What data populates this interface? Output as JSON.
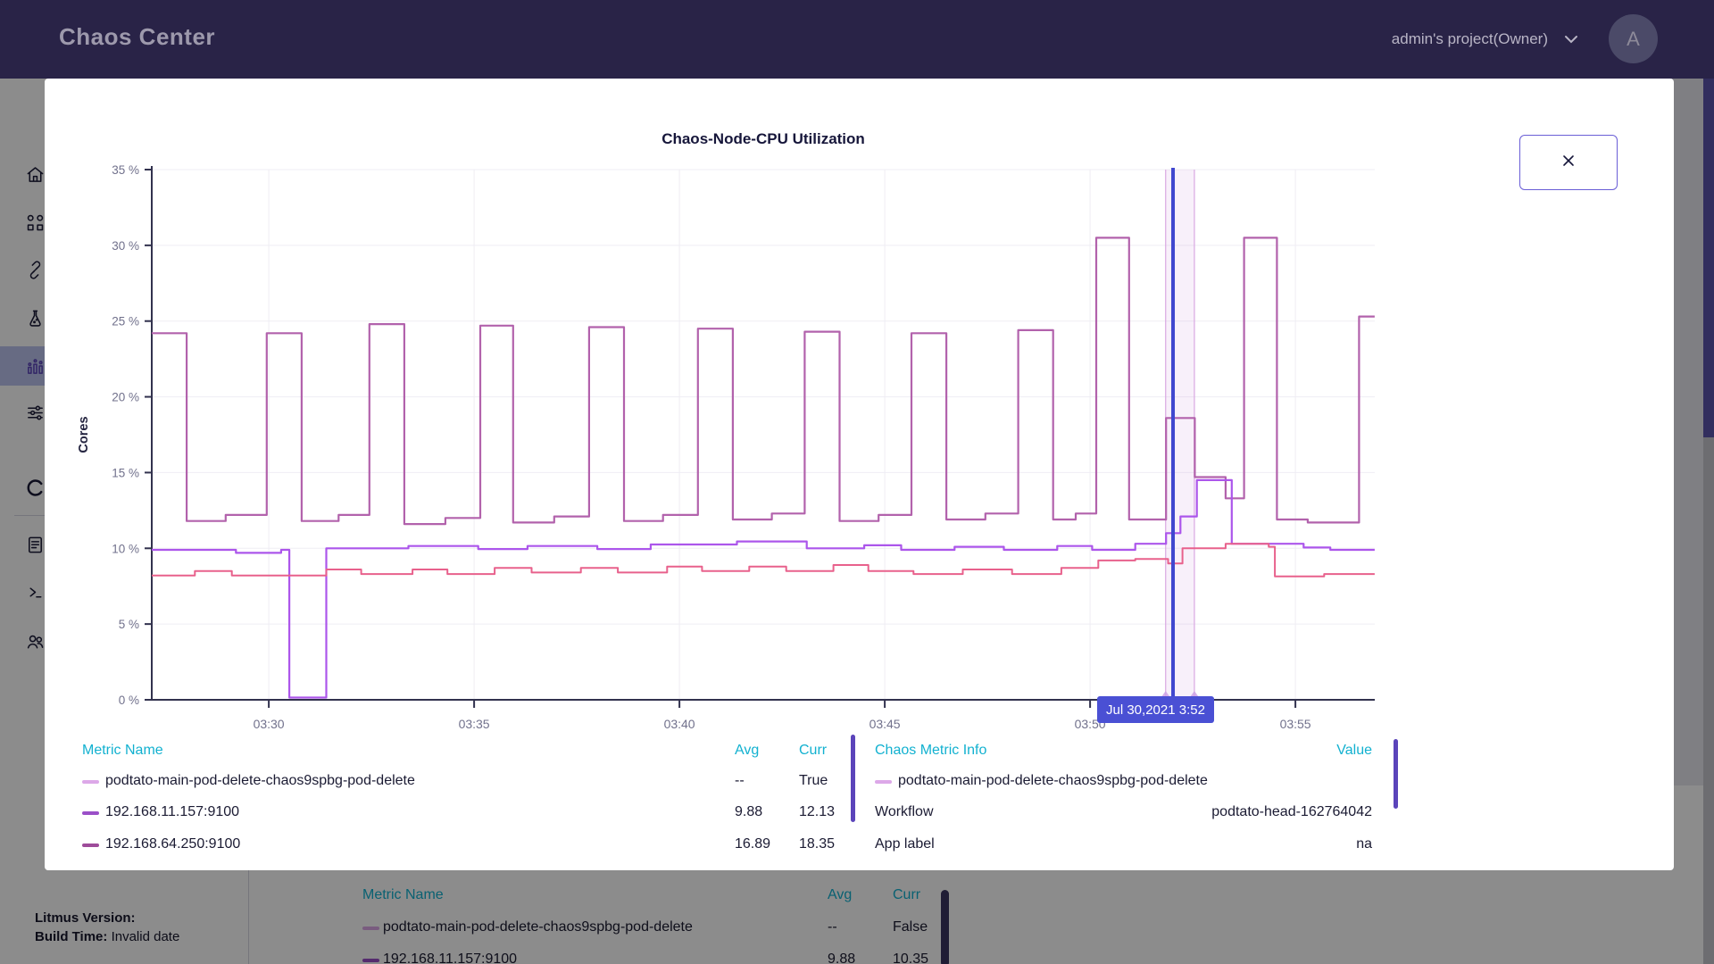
{
  "header": {
    "title": "Chaos Center",
    "project": "admin's project(Owner)",
    "avatar_initial": "A"
  },
  "sidebar": {
    "items": [
      {
        "id": "home",
        "icon": "home-icon",
        "active": false
      },
      {
        "id": "workflows",
        "icon": "workflows-icon",
        "active": false
      },
      {
        "id": "agents",
        "icon": "chain-link-icon",
        "active": false
      },
      {
        "id": "myhub",
        "icon": "flask-icon",
        "active": false
      },
      {
        "id": "analytics",
        "icon": "analytics-icon",
        "active": true
      },
      {
        "id": "settings",
        "icon": "sliders-icon",
        "active": false
      },
      {
        "id": "litmus",
        "icon": "litmus-logo-icon",
        "active": false
      },
      {
        "id": "docs",
        "icon": "document-icon",
        "active": false
      },
      {
        "id": "api",
        "icon": "terminal-icon",
        "active": false
      },
      {
        "id": "community",
        "icon": "community-icon",
        "active": false
      }
    ],
    "footer": {
      "version_label": "Litmus Version:",
      "build_label": "Build Time:",
      "build_value": "Invalid date"
    }
  },
  "modal": {
    "close_glyph": "close",
    "tooltip": "Jul 30,2021 3:52"
  },
  "chart_data": {
    "type": "line",
    "title": "Chaos-Node-CPU Utilization",
    "ylabel": "Cores",
    "ylim": [
      0,
      35
    ],
    "y_ticks": [
      0,
      5,
      10,
      15,
      20,
      25,
      30,
      35
    ],
    "y_tick_suffix": " %",
    "x_range_minutes": [
      27.15,
      56.93
    ],
    "x_ticks": [
      {
        "t": 30,
        "label": "03:30"
      },
      {
        "t": 35,
        "label": "03:35"
      },
      {
        "t": 40,
        "label": "03:40"
      },
      {
        "t": 45,
        "label": "03:45"
      },
      {
        "t": 50,
        "label": "03:50"
      },
      {
        "t": 55,
        "label": "03:55"
      }
    ],
    "grid": true,
    "series": [
      {
        "name": "192.168.64.250:9100",
        "color": "#B262AC",
        "width": 2.2,
        "points": [
          [
            27.15,
            24.2
          ],
          [
            28.0,
            11.8
          ],
          [
            28.95,
            12.2
          ],
          [
            29.95,
            24.2
          ],
          [
            30.8,
            11.8
          ],
          [
            31.7,
            12.2
          ],
          [
            32.45,
            24.8
          ],
          [
            33.3,
            11.6
          ],
          [
            34.3,
            12.0
          ],
          [
            35.15,
            24.7
          ],
          [
            35.95,
            11.7
          ],
          [
            36.95,
            12.1
          ],
          [
            37.8,
            24.6
          ],
          [
            38.65,
            11.8
          ],
          [
            39.6,
            12.2
          ],
          [
            40.45,
            24.5
          ],
          [
            41.3,
            11.9
          ],
          [
            42.25,
            12.3
          ],
          [
            43.05,
            24.3
          ],
          [
            43.9,
            11.8
          ],
          [
            44.85,
            12.2
          ],
          [
            45.65,
            24.2
          ],
          [
            46.5,
            11.9
          ],
          [
            47.45,
            12.3
          ],
          [
            48.25,
            24.4
          ],
          [
            49.1,
            11.9
          ],
          [
            49.65,
            12.3
          ],
          [
            50.15,
            30.5
          ],
          [
            50.95,
            11.9
          ],
          [
            51.85,
            18.6
          ],
          [
            52.55,
            14.7
          ],
          [
            53.3,
            13.3
          ],
          [
            53.75,
            30.5
          ],
          [
            54.55,
            11.9
          ],
          [
            55.3,
            11.7
          ],
          [
            56.55,
            25.3
          ]
        ]
      },
      {
        "name": "192.168.11.157:9100",
        "color": "#AC56EB",
        "width": 2.2,
        "points": [
          [
            27.15,
            9.9
          ],
          [
            29.2,
            9.7
          ],
          [
            30.3,
            9.9
          ],
          [
            30.5,
            0.15
          ],
          [
            31.4,
            10.0
          ],
          [
            33.4,
            10.15
          ],
          [
            35.1,
            9.95
          ],
          [
            36.3,
            10.15
          ],
          [
            38.0,
            9.95
          ],
          [
            39.3,
            10.25
          ],
          [
            41.4,
            10.45
          ],
          [
            43.1,
            10.0
          ],
          [
            44.5,
            10.2
          ],
          [
            45.4,
            9.9
          ],
          [
            46.7,
            10.1
          ],
          [
            47.9,
            9.9
          ],
          [
            49.2,
            10.15
          ],
          [
            50.05,
            9.9
          ],
          [
            51.1,
            10.3
          ],
          [
            51.85,
            11.0
          ],
          [
            52.2,
            12.1
          ],
          [
            52.6,
            14.5
          ],
          [
            53.45,
            10.3
          ],
          [
            55.2,
            10.05
          ],
          [
            55.85,
            9.9
          ]
        ]
      },
      {
        "name": "",
        "color": "#E8618C",
        "width": 2.0,
        "points": [
          [
            27.15,
            8.2
          ],
          [
            28.2,
            8.5
          ],
          [
            29.1,
            8.2
          ],
          [
            31.4,
            8.6
          ],
          [
            32.25,
            8.3
          ],
          [
            33.5,
            8.6
          ],
          [
            34.35,
            8.3
          ],
          [
            35.5,
            8.7
          ],
          [
            36.4,
            8.4
          ],
          [
            37.6,
            8.7
          ],
          [
            38.5,
            8.4
          ],
          [
            39.7,
            8.8
          ],
          [
            40.55,
            8.5
          ],
          [
            41.7,
            8.8
          ],
          [
            42.6,
            8.5
          ],
          [
            43.75,
            8.9
          ],
          [
            44.6,
            8.5
          ],
          [
            45.7,
            8.3
          ],
          [
            46.9,
            8.6
          ],
          [
            48.1,
            8.3
          ],
          [
            49.3,
            8.7
          ],
          [
            50.2,
            9.2
          ],
          [
            51.1,
            9.3
          ],
          [
            51.9,
            9.0
          ],
          [
            52.25,
            10.0
          ],
          [
            53.3,
            10.3
          ],
          [
            54.35,
            10.1
          ],
          [
            54.5,
            8.15
          ],
          [
            55.7,
            8.3
          ]
        ]
      }
    ],
    "event_band": {
      "name": "podtato-main-pod-delete-chaos9spbg-pod-delete",
      "from": 51.84,
      "to": 52.54,
      "fill": "rgba(206,152,222,0.15)",
      "edge": "#D9A8E2",
      "marker": "#CFA3E6"
    },
    "cursor": {
      "t": 52.02,
      "color": "#4047CF",
      "tooltip": "Jul 30,2021 3:52"
    }
  },
  "legend": {
    "left": {
      "headers": {
        "name": "Metric Name",
        "avg": "Avg",
        "curr": "Curr"
      },
      "rows": [
        {
          "swatch": "#DCA8E8",
          "name": "podtato-main-pod-delete-chaos9spbg-pod-delete",
          "avg": "--",
          "curr": "True"
        },
        {
          "swatch": "#9B4FC8",
          "name": "192.168.11.157:9100",
          "avg": "9.88",
          "curr": "12.13"
        },
        {
          "swatch": "#9E4C9A",
          "name": "192.168.64.250:9100",
          "avg": "16.89",
          "curr": "18.35"
        }
      ]
    },
    "right": {
      "headers": {
        "name": "Chaos Metric Info",
        "value": "Value"
      },
      "rows": [
        {
          "swatch": "#DCA8E8",
          "name": "podtato-main-pod-delete-chaos9spbg-pod-delete",
          "value": ""
        },
        {
          "swatch": "",
          "name": "Workflow",
          "value": "podtato-head-162764042"
        },
        {
          "swatch": "",
          "name": "App label",
          "value": "na"
        }
      ]
    }
  },
  "background_table": {
    "headers": {
      "name": "Metric Name",
      "avg": "Avg",
      "curr": "Curr"
    },
    "rows": [
      {
        "swatch": "#DCA8E8",
        "name": "podtato-main-pod-delete-chaos9spbg-pod-delete",
        "avg": "--",
        "curr": "False"
      },
      {
        "swatch": "#9B4FC8",
        "name": "192.168.11.157:9100",
        "avg": "9.88",
        "curr": "10.35"
      }
    ]
  }
}
